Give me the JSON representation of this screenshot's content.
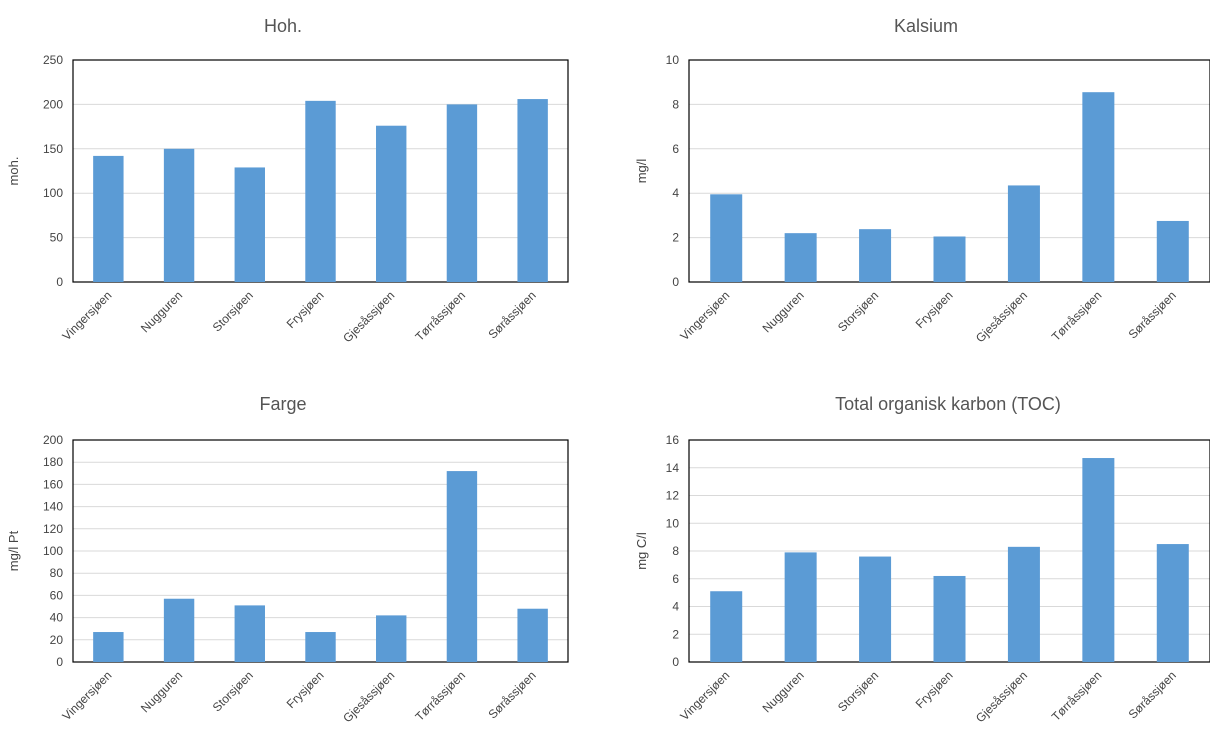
{
  "chart_data": [
    {
      "type": "bar",
      "title": "Hoh.",
      "xlabel": "",
      "ylabel": "moh.",
      "ylim": [
        0,
        250
      ],
      "yticks": [
        0,
        50,
        100,
        150,
        200,
        250
      ],
      "categories": [
        "Vingersjøen",
        "Nugguren",
        "Storsjøen",
        "Frysjøen",
        "Gjesåssjøen",
        "Tørråssjøen",
        "Søråssjøen"
      ],
      "values": [
        142,
        150,
        129,
        204,
        176,
        200,
        206
      ],
      "grid": true,
      "color": "#5b9bd5"
    },
    {
      "type": "bar",
      "title": "Kalsium",
      "xlabel": "",
      "ylabel": "mg/l",
      "ylim": [
        0,
        10
      ],
      "yticks": [
        0,
        2,
        4,
        6,
        8,
        10
      ],
      "categories": [
        "Vingersjøen",
        "Nugguren",
        "Storsjøen",
        "Frysjøen",
        "Gjesåssjøen",
        "Tørråssjøen",
        "Søråssjøen"
      ],
      "values": [
        3.95,
        2.2,
        2.38,
        2.05,
        4.35,
        8.55,
        2.75
      ],
      "grid": true,
      "color": "#5b9bd5"
    },
    {
      "type": "bar",
      "title": "Farge",
      "xlabel": "",
      "ylabel": "mg/l Pt",
      "ylim": [
        0,
        200
      ],
      "yticks": [
        0,
        20,
        40,
        60,
        80,
        100,
        120,
        140,
        160,
        180,
        200
      ],
      "categories": [
        "Vingersjøen",
        "Nugguren",
        "Storsjøen",
        "Frysjøen",
        "Gjesåssjøen",
        "Tørråssjøen",
        "Søråssjøen"
      ],
      "values": [
        27,
        57,
        51,
        27,
        42,
        172,
        48
      ],
      "grid": true,
      "color": "#5b9bd5"
    },
    {
      "type": "bar",
      "title": "Total organisk karbon (TOC)",
      "xlabel": "",
      "ylabel": "mg C/l",
      "ylim": [
        0,
        16
      ],
      "yticks": [
        0,
        2,
        4,
        6,
        8,
        10,
        12,
        14,
        16
      ],
      "categories": [
        "Vingersjøen",
        "Nugguren",
        "Storsjøen",
        "Frysjøen",
        "Gjesåssjøen",
        "Tørråssjøen",
        "Søråssjøen"
      ],
      "values": [
        5.1,
        7.9,
        7.6,
        6.2,
        8.3,
        14.7,
        8.5
      ],
      "grid": true,
      "color": "#5b9bd5"
    }
  ]
}
